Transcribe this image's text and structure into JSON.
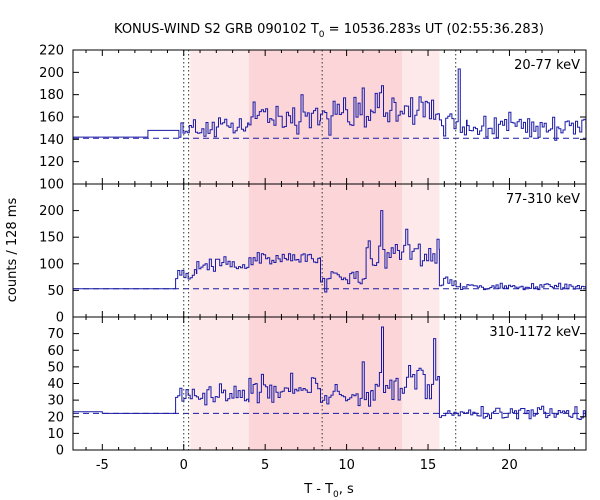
{
  "figure": {
    "title_main": "KONUS-WIND S2 GRB 090102 T",
    "title_sub": "0",
    "title_rest": " = 10536.283s UT (02:55:36.283)",
    "ylabel": "counts / 128 ms",
    "xlabel_main": "T - T",
    "xlabel_sub": "0",
    "xlabel_rest": ", s"
  },
  "colors": {
    "trace": "#1a1aa6",
    "shade_light": "#fde9e9",
    "shade_dark": "#fbd5d8",
    "axis": "#000000"
  },
  "chart_data": [
    {
      "type": "line",
      "step": true,
      "label": "20-77 keV",
      "xlim": [
        -6.8,
        24.7
      ],
      "ylim": [
        100,
        220
      ],
      "yticks": [
        100,
        120,
        140,
        160,
        180,
        200,
        220
      ],
      "xticks": [
        -5,
        0,
        5,
        10,
        15,
        20
      ],
      "background": 141,
      "segments": [
        {
          "x0": -6.8,
          "x1": -2.2,
          "y": 142
        },
        {
          "x0": -2.2,
          "x1": -0.3,
          "y": 148
        },
        {
          "x0": -0.3,
          "x1": 4.0,
          "mean": 150,
          "amp": 12
        },
        {
          "x0": 4.0,
          "x1": 8.4,
          "mean": 162,
          "amp": 20
        },
        {
          "x0": 8.4,
          "x1": 11.5,
          "mean": 162,
          "amp": 20
        },
        {
          "x0": 11.5,
          "x1": 15.7,
          "mean": 166,
          "amp": 20
        },
        {
          "x0": 15.7,
          "x1": 17.4,
          "mean": 152,
          "amp": 16
        },
        {
          "x0": 17.4,
          "x1": 24.7,
          "mean": 152,
          "amp": 14
        }
      ],
      "spikes": [
        {
          "x": 16.8,
          "y": 203
        },
        {
          "x": 12.2,
          "y": 188
        },
        {
          "x": 11.0,
          "y": 186
        }
      ]
    },
    {
      "type": "line",
      "step": true,
      "label": "77-310 keV",
      "xlim": [
        -6.8,
        24.7
      ],
      "ylim": [
        0,
        250
      ],
      "yticks": [
        0,
        50,
        100,
        150,
        200
      ],
      "xticks": [
        -5,
        0,
        5,
        10,
        15,
        20
      ],
      "background": 53,
      "segments": [
        {
          "x0": -6.8,
          "x1": -0.5,
          "y": 53
        },
        {
          "x0": -0.5,
          "x1": 0.8,
          "mean": 85,
          "amp": 14
        },
        {
          "x0": 0.8,
          "x1": 4.0,
          "mean": 98,
          "amp": 18
        },
        {
          "x0": 4.0,
          "x1": 8.4,
          "mean": 110,
          "amp": 16
        },
        {
          "x0": 8.4,
          "x1": 11.2,
          "mean": 75,
          "amp": 16
        },
        {
          "x0": 11.2,
          "x1": 15.7,
          "mean": 120,
          "amp": 32
        },
        {
          "x0": 15.7,
          "x1": 17.0,
          "mean": 65,
          "amp": 12
        },
        {
          "x0": 17.0,
          "x1": 24.7,
          "mean": 57,
          "amp": 7
        }
      ],
      "spikes": [
        {
          "x": 12.1,
          "y": 200
        },
        {
          "x": 13.6,
          "y": 165
        },
        {
          "x": 8.6,
          "y": 47
        }
      ]
    },
    {
      "type": "line",
      "step": true,
      "label": "310-1172 keV",
      "xlim": [
        -6.8,
        24.7
      ],
      "ylim": [
        0,
        80
      ],
      "yticks": [
        0,
        10,
        20,
        30,
        40,
        50,
        60,
        70
      ],
      "xticks": [
        -5,
        0,
        5,
        10,
        15,
        20
      ],
      "background": 22,
      "segments": [
        {
          "x0": -6.8,
          "x1": -5.0,
          "y": 23
        },
        {
          "x0": -5.0,
          "x1": -0.5,
          "y": 22
        },
        {
          "x0": -0.5,
          "x1": 4.0,
          "mean": 33,
          "amp": 9
        },
        {
          "x0": 4.0,
          "x1": 8.4,
          "mean": 37,
          "amp": 10
        },
        {
          "x0": 8.4,
          "x1": 11.5,
          "mean": 31,
          "amp": 9
        },
        {
          "x0": 11.5,
          "x1": 15.7,
          "mean": 38,
          "amp": 14
        },
        {
          "x0": 15.7,
          "x1": 24.7,
          "mean": 22,
          "amp": 5
        }
      ],
      "spikes": [
        {
          "x": 12.2,
          "y": 74
        },
        {
          "x": 15.3,
          "y": 67
        },
        {
          "x": 10.9,
          "y": 53
        }
      ]
    }
  ],
  "intervals": {
    "light": [
      0.4,
      15.7
    ],
    "dark": [
      4.0,
      13.4
    ],
    "dotted_lines": [
      0.0,
      0.3,
      8.5,
      16.7
    ]
  }
}
